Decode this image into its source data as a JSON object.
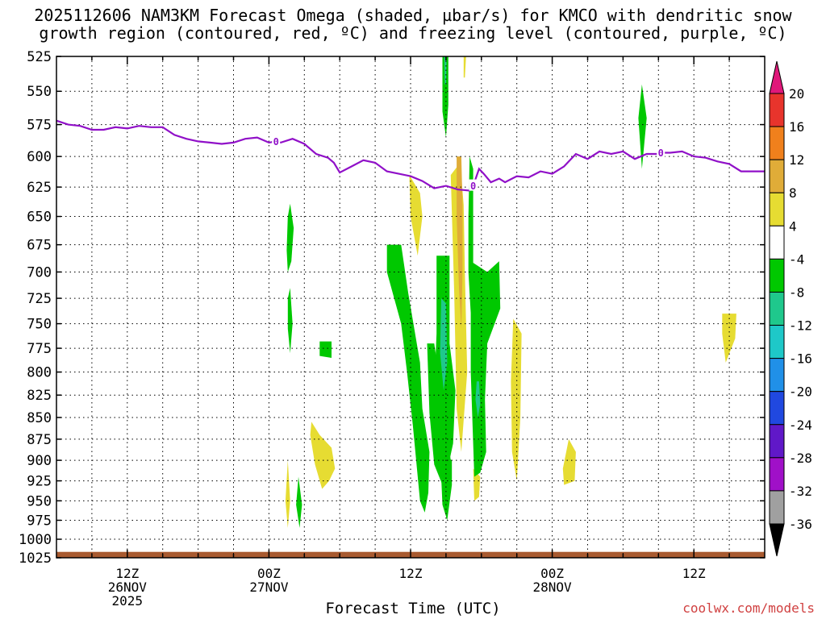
{
  "title": {
    "line1": "2025112606 NAM3KM Forecast Omega (shaded, µbar/s) for KMCO with dendritic snow",
    "line2": "growth region (contoured, red, ºC) and freezing level (contoured, purple, ºC)"
  },
  "credit": "coolwx.com/models",
  "chart_data": {
    "type": "heatmap",
    "xlabel": "Forecast Time (UTC)",
    "x_unit": "hours since 2025-11-26 06Z",
    "xlim": [
      0,
      60
    ],
    "x_ticks": [
      {
        "hour": 6,
        "lines": [
          "12Z",
          "26NOV",
          "2025"
        ]
      },
      {
        "hour": 18,
        "lines": [
          "00Z",
          "27NOV"
        ]
      },
      {
        "hour": 30,
        "lines": [
          "12Z"
        ]
      },
      {
        "hour": 42,
        "lines": [
          "00Z",
          "28NOV"
        ]
      },
      {
        "hour": 54,
        "lines": [
          "12Z"
        ]
      }
    ],
    "ylabel": "",
    "y_unit": "hPa",
    "ylim": [
      1025,
      525
    ],
    "y_scale": "log",
    "y_ticks": [
      525,
      550,
      575,
      600,
      625,
      650,
      675,
      700,
      725,
      750,
      775,
      800,
      825,
      850,
      875,
      900,
      925,
      950,
      975,
      1000,
      1025
    ],
    "grid": true,
    "colorbar": {
      "labels": [
        "20",
        "16",
        "12",
        "8",
        "4",
        "-4",
        "-8",
        "-12",
        "-16",
        "-20",
        "-24",
        "-28",
        "-32",
        "-36"
      ],
      "bins": [
        {
          "lo": 20,
          "hi": null,
          "color": "#e0187a"
        },
        {
          "lo": 16,
          "hi": 20,
          "color": "#e8342c"
        },
        {
          "lo": 12,
          "hi": 16,
          "color": "#f0801c"
        },
        {
          "lo": 8,
          "hi": 12,
          "color": "#e0ac38"
        },
        {
          "lo": 4,
          "hi": 8,
          "color": "#e6dc32"
        },
        {
          "lo": -4,
          "hi": 4,
          "color": "#ffffff"
        },
        {
          "lo": -8,
          "hi": -4,
          "color": "#00c800"
        },
        {
          "lo": -12,
          "hi": -8,
          "color": "#1fc88c"
        },
        {
          "lo": -16,
          "hi": -12,
          "color": "#1ec8c8"
        },
        {
          "lo": -20,
          "hi": -16,
          "color": "#2090e8"
        },
        {
          "lo": -24,
          "hi": -20,
          "color": "#2048e0"
        },
        {
          "lo": -28,
          "hi": -24,
          "color": "#6018c8"
        },
        {
          "lo": -32,
          "hi": -28,
          "color": "#a010c8"
        },
        {
          "lo": -36,
          "hi": -32,
          "color": "#a0a0a0"
        },
        {
          "lo": null,
          "hi": -36,
          "color": "#000000"
        }
      ]
    },
    "omega_regions": [
      {
        "name": "",
        "value": -6,
        "points": [
          [
            19.8,
            639
          ],
          [
            20.1,
            660
          ],
          [
            19.9,
            690
          ],
          [
            19.6,
            700
          ],
          [
            19.5,
            680
          ],
          [
            19.6,
            650
          ]
        ]
      },
      {
        "name": "",
        "value": -6,
        "points": [
          [
            19.8,
            715
          ],
          [
            20.0,
            750
          ],
          [
            19.8,
            780
          ],
          [
            19.6,
            755
          ],
          [
            19.6,
            725
          ]
        ]
      },
      {
        "name": "",
        "value": -6,
        "points": [
          [
            22.3,
            768
          ],
          [
            23.3,
            768
          ],
          [
            23.3,
            785
          ],
          [
            22.3,
            783
          ]
        ]
      },
      {
        "name": "",
        "value": 6,
        "points": [
          [
            19.6,
            900
          ],
          [
            19.8,
            950
          ],
          [
            19.6,
            985
          ],
          [
            19.4,
            950
          ]
        ]
      },
      {
        "name": "",
        "value": -6,
        "points": [
          [
            20.5,
            920
          ],
          [
            20.8,
            955
          ],
          [
            20.6,
            985
          ],
          [
            20.3,
            955
          ]
        ]
      },
      {
        "name": "",
        "value": 6,
        "points": [
          [
            21.6,
            855
          ],
          [
            22.3,
            870
          ],
          [
            23.3,
            885
          ],
          [
            23.6,
            910
          ],
          [
            23.1,
            925
          ],
          [
            22.5,
            935
          ],
          [
            21.9,
            905
          ],
          [
            21.5,
            870
          ]
        ]
      },
      {
        "name": "",
        "value": -6,
        "points": [
          [
            28.0,
            675
          ],
          [
            29.2,
            675
          ],
          [
            29.8,
            720
          ],
          [
            30.8,
            790
          ],
          [
            31.0,
            840
          ],
          [
            31.6,
            890
          ],
          [
            31.5,
            940
          ],
          [
            31.2,
            965
          ],
          [
            30.8,
            950
          ],
          [
            30.2,
            860
          ],
          [
            29.7,
            800
          ],
          [
            29.2,
            750
          ],
          [
            28.0,
            700
          ]
        ]
      },
      {
        "name": "",
        "value": -6,
        "points": [
          [
            31.4,
            770
          ],
          [
            32.0,
            770
          ],
          [
            32.7,
            830
          ],
          [
            33.4,
            900
          ],
          [
            32.7,
            930
          ],
          [
            32.0,
            905
          ],
          [
            31.6,
            845
          ]
        ]
      },
      {
        "name": "",
        "value": -6,
        "points": [
          [
            32.5,
            890
          ],
          [
            33.5,
            900
          ],
          [
            33.5,
            930
          ],
          [
            33.1,
            975
          ],
          [
            32.7,
            955
          ]
        ]
      },
      {
        "name": "",
        "value": -6,
        "points": [
          [
            32.2,
            685
          ],
          [
            33.3,
            685
          ],
          [
            33.3,
            770
          ],
          [
            33.8,
            820
          ],
          [
            33.6,
            880
          ],
          [
            33.0,
            920
          ],
          [
            32.4,
            890
          ],
          [
            32.0,
            820
          ],
          [
            32.2,
            760
          ]
        ]
      },
      {
        "name": "",
        "value": -10,
        "points": [
          [
            32.6,
            725
          ],
          [
            33.0,
            730
          ],
          [
            33.1,
            790
          ],
          [
            32.8,
            820
          ],
          [
            32.5,
            780
          ]
        ]
      },
      {
        "name": "",
        "value": -6,
        "points": [
          [
            32.7,
            525
          ],
          [
            33.2,
            525
          ],
          [
            33.2,
            560
          ],
          [
            33.0,
            585
          ],
          [
            32.7,
            565
          ]
        ]
      },
      {
        "name": "",
        "value": -10,
        "points": [
          [
            32.85,
            525
          ],
          [
            33.05,
            525
          ],
          [
            33.0,
            545
          ],
          [
            32.9,
            545
          ]
        ]
      },
      {
        "name": "",
        "value": 6,
        "points": [
          [
            29.9,
            615
          ],
          [
            30.8,
            630
          ],
          [
            31.0,
            650
          ],
          [
            30.6,
            685
          ],
          [
            30.0,
            650
          ]
        ]
      },
      {
        "name": "",
        "value": 6,
        "points": [
          [
            33.4,
            615
          ],
          [
            34.2,
            605
          ],
          [
            34.5,
            640
          ],
          [
            34.6,
            700
          ],
          [
            34.8,
            800
          ],
          [
            34.3,
            890
          ],
          [
            33.9,
            840
          ],
          [
            33.7,
            720
          ]
        ]
      },
      {
        "name": "",
        "value": 10,
        "points": [
          [
            33.9,
            600
          ],
          [
            34.3,
            600
          ],
          [
            34.4,
            640
          ],
          [
            34.4,
            700
          ],
          [
            34.3,
            755
          ],
          [
            34.1,
            715
          ],
          [
            33.9,
            650
          ]
        ]
      },
      {
        "name": "",
        "value": 6,
        "points": [
          [
            34.5,
            525
          ],
          [
            34.7,
            525
          ],
          [
            34.6,
            540
          ],
          [
            34.5,
            540
          ]
        ]
      },
      {
        "name": "",
        "value": 6,
        "points": [
          [
            35.3,
            910
          ],
          [
            35.9,
            920
          ],
          [
            35.8,
            945
          ],
          [
            35.4,
            950
          ]
        ]
      },
      {
        "name": "",
        "value": -6,
        "points": [
          [
            35.0,
            600
          ],
          [
            35.3,
            610
          ],
          [
            35.3,
            700
          ],
          [
            35.1,
            740
          ],
          [
            34.9,
            700
          ],
          [
            34.9,
            650
          ]
        ]
      },
      {
        "name": "",
        "value": -6,
        "points": [
          [
            35.1,
            690
          ],
          [
            36.5,
            700
          ],
          [
            37.5,
            690
          ],
          [
            37.6,
            735
          ],
          [
            36.5,
            770
          ],
          [
            36.3,
            830
          ],
          [
            36.4,
            890
          ],
          [
            35.9,
            915
          ],
          [
            35.4,
            920
          ],
          [
            35.3,
            880
          ],
          [
            35.1,
            800
          ]
        ]
      },
      {
        "name": "",
        "value": -10,
        "points": [
          [
            35.6,
            810
          ],
          [
            35.8,
            810
          ],
          [
            35.9,
            835
          ],
          [
            35.7,
            850
          ],
          [
            35.5,
            830
          ]
        ]
      },
      {
        "name": "",
        "value": 6,
        "points": [
          [
            38.7,
            745
          ],
          [
            39.4,
            760
          ],
          [
            39.3,
            850
          ],
          [
            39.0,
            925
          ],
          [
            38.6,
            890
          ],
          [
            38.5,
            810
          ]
        ]
      },
      {
        "name": "",
        "value": 6,
        "points": [
          [
            43.4,
            875
          ],
          [
            44.0,
            890
          ],
          [
            43.9,
            925
          ],
          [
            43.0,
            930
          ],
          [
            42.9,
            910
          ]
        ]
      },
      {
        "name": "",
        "value": -6,
        "points": [
          [
            49.6,
            545
          ],
          [
            50.0,
            570
          ],
          [
            49.6,
            610
          ],
          [
            49.3,
            570
          ]
        ]
      },
      {
        "name": "",
        "value": 6,
        "points": [
          [
            56.4,
            740
          ],
          [
            57.6,
            740
          ],
          [
            57.5,
            765
          ],
          [
            56.7,
            790
          ],
          [
            56.4,
            760
          ]
        ]
      }
    ],
    "terrain": {
      "color": "#a85a30",
      "surface_pressure": 1017,
      "bottom": 1025
    },
    "freezing_level": {
      "name": "0",
      "color": "#9010c8",
      "label_at_hours": [
        18.6,
        35.3,
        51.2
      ],
      "points": [
        [
          0,
          572
        ],
        [
          1,
          575
        ],
        [
          2,
          576
        ],
        [
          3,
          579
        ],
        [
          4,
          579
        ],
        [
          5,
          577
        ],
        [
          6,
          578
        ],
        [
          7,
          576
        ],
        [
          8,
          577
        ],
        [
          9,
          577
        ],
        [
          10,
          583
        ],
        [
          11,
          586
        ],
        [
          12,
          588
        ],
        [
          13,
          589
        ],
        [
          14,
          590
        ],
        [
          15,
          589
        ],
        [
          16,
          586
        ],
        [
          17,
          585
        ],
        [
          18,
          589
        ],
        [
          18.6,
          588
        ],
        [
          19,
          589
        ],
        [
          20,
          586
        ],
        [
          21,
          590
        ],
        [
          22,
          598
        ],
        [
          23,
          601
        ],
        [
          23.5,
          605
        ],
        [
          24,
          613
        ],
        [
          25,
          608
        ],
        [
          26,
          603
        ],
        [
          27,
          605
        ],
        [
          28,
          612
        ],
        [
          29,
          614
        ],
        [
          30,
          616
        ],
        [
          31,
          620
        ],
        [
          32,
          626
        ],
        [
          33,
          624
        ],
        [
          34,
          627
        ],
        [
          35,
          628
        ],
        [
          35.3,
          624
        ],
        [
          35.8,
          610
        ],
        [
          36.2,
          614
        ],
        [
          36.8,
          621
        ],
        [
          37.5,
          618
        ],
        [
          38,
          621
        ],
        [
          39,
          616
        ],
        [
          40,
          617
        ],
        [
          41,
          612
        ],
        [
          42,
          614
        ],
        [
          43,
          608
        ],
        [
          44,
          598
        ],
        [
          45,
          602
        ],
        [
          46,
          596
        ],
        [
          47,
          598
        ],
        [
          48,
          596
        ],
        [
          49,
          602
        ],
        [
          50,
          598
        ],
        [
          51,
          598
        ],
        [
          51.2,
          597
        ],
        [
          52,
          597
        ],
        [
          53,
          596
        ],
        [
          54,
          600
        ],
        [
          55,
          601
        ],
        [
          56,
          604
        ],
        [
          57,
          606
        ],
        [
          58,
          612
        ],
        [
          59,
          612
        ],
        [
          60,
          612
        ]
      ]
    }
  }
}
